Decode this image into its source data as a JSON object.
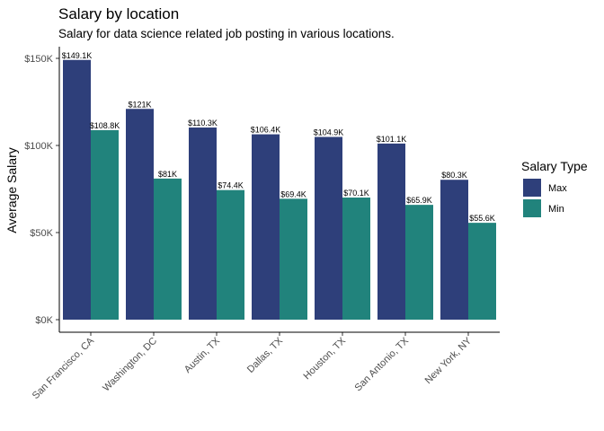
{
  "chart_data": {
    "type": "bar",
    "title": "Salary by location",
    "subtitle": "Salary for data science related job posting in various locations.",
    "xlabel": "",
    "ylabel": "Average Salary",
    "ylim": [
      0,
      156000
    ],
    "y_ticks": [
      0,
      50000,
      100000,
      150000
    ],
    "y_tick_labels": [
      "$0K",
      "$50K",
      "$100K",
      "$150K"
    ],
    "grid": false,
    "legend_position": "right",
    "legend_title": "Salary Type",
    "categories": [
      "San Francisco, CA",
      "Washington, DC",
      "Austin, TX",
      "Dallas, TX",
      "Houston, TX",
      "San Antonio, TX",
      "New York, NY"
    ],
    "series": [
      {
        "name": "Max",
        "color": "#2E3F7A",
        "values": [
          149100,
          121000,
          110300,
          106400,
          104900,
          101100,
          80300
        ],
        "labels": [
          "$149.1K",
          "$121K",
          "$110.3K",
          "$106.4K",
          "$104.9K",
          "$101.1K",
          "$80.3K"
        ]
      },
      {
        "name": "Min",
        "color": "#21837C",
        "values": [
          108800,
          81000,
          74400,
          69400,
          70100,
          65900,
          55600
        ],
        "labels": [
          "$108.8K",
          "$81K",
          "$74.4K",
          "$69.4K",
          "$70.1K",
          "$65.9K",
          "$55.6K"
        ]
      }
    ]
  }
}
